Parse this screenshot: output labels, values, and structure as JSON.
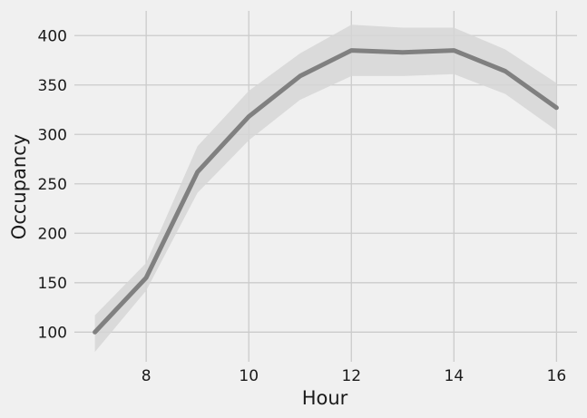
{
  "chart_data": {
    "type": "line",
    "title": "",
    "xlabel": "Hour",
    "ylabel": "Occupancy",
    "xlim": [
      6.6,
      16.4
    ],
    "ylim": [
      70,
      425
    ],
    "xticks": [
      8,
      10,
      12,
      14,
      16
    ],
    "yticks": [
      100,
      150,
      200,
      250,
      300,
      350,
      400
    ],
    "grid": true,
    "legend": "none",
    "colors": {
      "line": "#808080",
      "band": "#d6d6d6",
      "background": "#f0f0f0",
      "grid": "#cbcbcb"
    },
    "series": [
      {
        "x": [
          7,
          8,
          9,
          10,
          11,
          12,
          13,
          14,
          15,
          16
        ],
        "y": [
          100,
          155,
          262,
          318,
          359,
          385,
          383,
          385,
          364,
          327
        ],
        "ci_lower": [
          80,
          142,
          241,
          294,
          335,
          359,
          359,
          361,
          341,
          304
        ],
        "ci_upper": [
          117,
          170,
          288,
          344,
          382,
          411,
          408,
          408,
          386,
          352
        ]
      }
    ]
  }
}
